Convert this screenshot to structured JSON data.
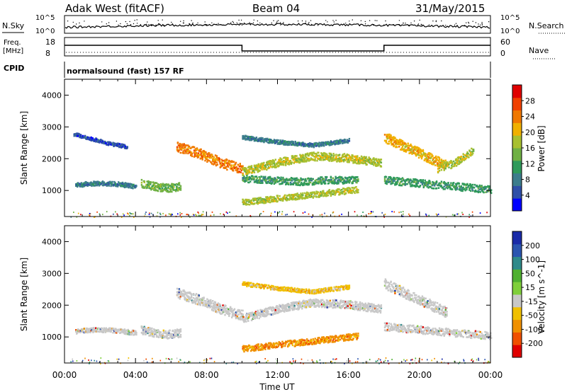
{
  "header": {
    "station": "Adak West (fitACF)",
    "beam": "Beam 04",
    "date": "31/May/2015"
  },
  "labels": {
    "nsky": "N.Sky",
    "nsearch": "N.Search",
    "freq_line1": "Freq.",
    "freq_line2": "[MHz]",
    "nave": "Nave",
    "cpid": "CPID",
    "cpid_value": "normalsound (fast) 157 RF"
  },
  "noise_axis": {
    "left_top": "10^5",
    "left_bottom": "10^0",
    "right_top": "10^5",
    "right_bottom": "10^0"
  },
  "freq_axis": {
    "left_ticks": [
      "18",
      "8"
    ],
    "right_ticks": [
      "60",
      "0"
    ]
  },
  "colors": {
    "power": [
      "#0000ff",
      "#2f4fa8",
      "#3c7d8c",
      "#2f9a5a",
      "#6fb044",
      "#a8c030",
      "#f0b000",
      "#f07800",
      "#f04000",
      "#e00000"
    ],
    "velocity": [
      "#1a2ba8",
      "#2b55b0",
      "#2f8a8a",
      "#4fb030",
      "#7fcf3a",
      "#c8c8c8",
      "#f0c000",
      "#f09000",
      "#f05000",
      "#e00000"
    ]
  },
  "chart_data": [
    {
      "type": "heatmap",
      "name": "power",
      "ylabel": "Slant Range [km]",
      "xlabel": "",
      "x_range_hours": [
        0,
        24
      ],
      "ylim_km": [
        180,
        4500
      ],
      "y_ticks": [
        1000,
        2000,
        3000,
        4000
      ],
      "colorbar": {
        "label": "Power [dB]",
        "ticks": [
          4,
          8,
          12,
          16,
          20,
          24,
          28
        ]
      },
      "echo_bands": [
        {
          "t": [
            0.6,
            4.0
          ],
          "r": [
            1200,
            1250,
            1230,
            1150
          ],
          "w": 90,
          "level": 2
        },
        {
          "t": [
            4.3,
            6.5
          ],
          "r": [
            1250,
            1150,
            1100,
            1150
          ],
          "w": 160,
          "level": 4
        },
        {
          "t": [
            6.3,
            10.0
          ],
          "r": [
            2400,
            2200,
            1900,
            1700
          ],
          "w": 200,
          "level": 7
        },
        {
          "t": [
            10.0,
            17.8
          ],
          "r": [
            1600,
            1900,
            2100,
            2050,
            1900
          ],
          "w": 160,
          "level": 5
        },
        {
          "t": [
            10.0,
            16.5
          ],
          "r": [
            1400,
            1350,
            1300,
            1350,
            1350
          ],
          "w": 140,
          "level": 3
        },
        {
          "t": [
            10.0,
            16.5
          ],
          "r": [
            650,
            750,
            850,
            950,
            1050
          ],
          "w": 120,
          "level": 5
        },
        {
          "t": [
            18.0,
            21.5
          ],
          "r": [
            2700,
            2400,
            2100,
            1800
          ],
          "w": 200,
          "level": 6
        },
        {
          "t": [
            21.0,
            23.0
          ],
          "r": [
            1700,
            1900,
            2300
          ],
          "w": 150,
          "level": 5
        },
        {
          "t": [
            18.0,
            24.0
          ],
          "r": [
            1350,
            1250,
            1150,
            1050
          ],
          "w": 150,
          "level": 3
        },
        {
          "t": [
            0.5,
            3.5
          ],
          "r": [
            2800,
            2650,
            2500,
            2400
          ],
          "w": 70,
          "level": 1
        },
        {
          "t": [
            10.0,
            16.0
          ],
          "r": [
            2700,
            2550,
            2450,
            2600
          ],
          "w": 80,
          "level": 2
        }
      ]
    },
    {
      "type": "heatmap",
      "name": "velocity",
      "ylabel": "Slant Range [km]",
      "xlabel": "Time UT",
      "x_range_hours": [
        0,
        24
      ],
      "x_ticks": [
        "00:00",
        "04:00",
        "08:00",
        "12:00",
        "16:00",
        "20:00",
        "00:00"
      ],
      "ylim_km": [
        180,
        4500
      ],
      "y_ticks": [
        1000,
        2000,
        3000,
        4000
      ],
      "colorbar": {
        "label": "Velocity [m s^-1]",
        "ticks": [
          200,
          100,
          50,
          15,
          -15,
          -50,
          -100,
          -200
        ]
      },
      "echo_bands": [
        {
          "t": [
            0.6,
            4.0
          ],
          "r": [
            1200,
            1250,
            1230,
            1150
          ],
          "w": 90,
          "level": 5
        },
        {
          "t": [
            4.3,
            6.5
          ],
          "r": [
            1250,
            1150,
            1100,
            1150
          ],
          "w": 160,
          "level": 5
        },
        {
          "t": [
            6.3,
            10.0
          ],
          "r": [
            2400,
            2200,
            1900,
            1700
          ],
          "w": 200,
          "level": 5
        },
        {
          "t": [
            10.0,
            17.8
          ],
          "r": [
            1600,
            1900,
            2100,
            2050,
            1900
          ],
          "w": 160,
          "level": 5
        },
        {
          "t": [
            10.0,
            16.5
          ],
          "r": [
            650,
            750,
            850,
            950,
            1050
          ],
          "w": 120,
          "level": 7
        },
        {
          "t": [
            18.0,
            21.5
          ],
          "r": [
            2700,
            2400,
            2100,
            1800
          ],
          "w": 200,
          "level": 5
        },
        {
          "t": [
            18.0,
            24.0
          ],
          "r": [
            1350,
            1250,
            1150,
            1050
          ],
          "w": 150,
          "level": 5
        },
        {
          "t": [
            10.0,
            16.0
          ],
          "r": [
            2700,
            2550,
            2450,
            2600
          ],
          "w": 80,
          "level": 6
        }
      ]
    }
  ]
}
